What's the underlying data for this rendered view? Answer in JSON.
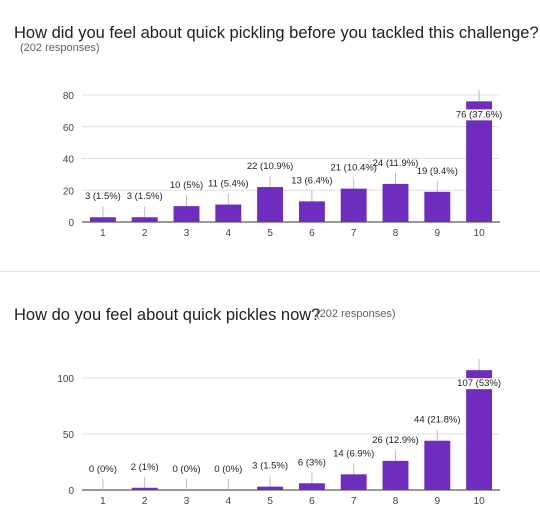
{
  "charts": [
    {
      "question": "How did you feel about quick pickling before you tackled this challenge?",
      "responses": "(202 responses)"
    },
    {
      "question": "How do you feel about quick pickles now?",
      "responses": "(202 responses)"
    }
  ],
  "colors": {
    "bar": "#6f2dbd",
    "grid": "#e0e0e0",
    "axis": "#333333",
    "tick": "#444444"
  },
  "chart_data": [
    {
      "type": "bar",
      "title": "How did you feel about quick pickling before you tackled this challenge?",
      "categories": [
        "1",
        "2",
        "3",
        "4",
        "5",
        "6",
        "7",
        "8",
        "9",
        "10"
      ],
      "values": [
        3,
        3,
        10,
        11,
        22,
        13,
        21,
        24,
        19,
        76
      ],
      "data_labels": [
        "3 (1.5%)",
        "3 (1.5%)",
        "10 (5%)",
        "11 (5.4%)",
        "22 (10.9%)",
        "13 (6.4%)",
        "21 (10.4%)",
        "24 (11.9%)",
        "19 (9.4%)",
        "76 (37.6%)"
      ],
      "yticks": [
        0,
        20,
        40,
        60,
        80
      ],
      "ylim": [
        0,
        80
      ],
      "grid": true,
      "legend": false
    },
    {
      "type": "bar",
      "title": "How do you feel about quick pickles now?",
      "categories": [
        "1",
        "2",
        "3",
        "4",
        "5",
        "6",
        "7",
        "8",
        "9",
        "10"
      ],
      "values": [
        0,
        2,
        0,
        0,
        3,
        6,
        14,
        26,
        44,
        107
      ],
      "data_labels": [
        "0 (0%)",
        "2 (1%)",
        "0 (0%)",
        "0 (0%)",
        "3 (1.5%)",
        "6 (3%)",
        "14 (6.9%)",
        "26 (12.9%)",
        "44 (21.8%)",
        "107 (53%)"
      ],
      "yticks": [
        0,
        50,
        100
      ],
      "ylim": [
        0,
        100
      ],
      "grid": true,
      "legend": false
    }
  ]
}
